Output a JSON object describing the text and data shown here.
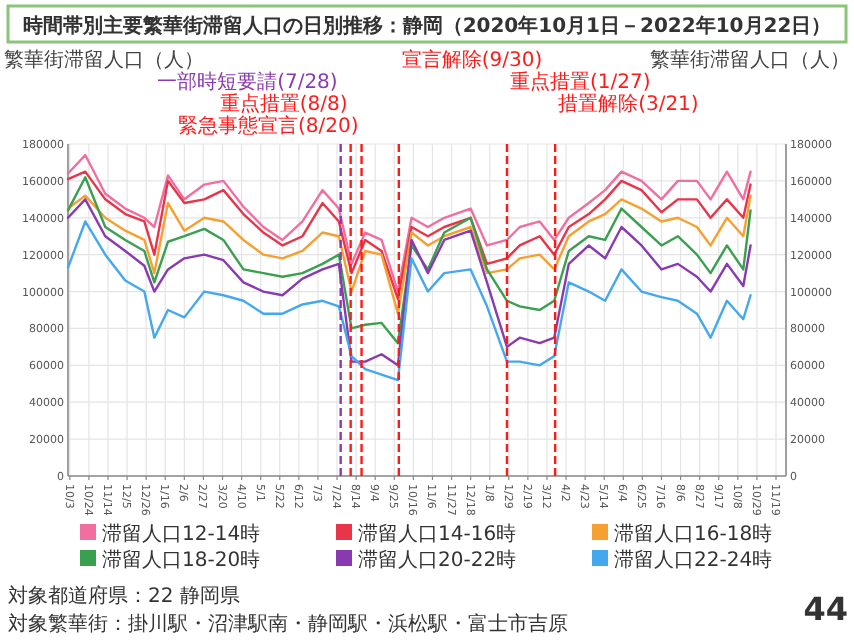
{
  "chart_data": {
    "type": "line",
    "title": "時間帯別主要繁華街滞留人口の日別推移：静岡（2020年10月1日－2022年10月22日）",
    "ylabel": "繁華街滞留人口（人）",
    "y2label": "繁華街滞留人口（人）",
    "x": [
      "2020-10-01",
      "2020-10-20",
      "2020-11-11",
      "2020-12-03",
      "2020-12-24",
      "2021-01-04",
      "2021-01-19",
      "2021-02-06",
      "2021-02-28",
      "2021-03-21",
      "2021-04-12",
      "2021-05-04",
      "2021-05-25",
      "2021-06-16",
      "2021-07-08",
      "2021-07-26",
      "2021-08-09",
      "2021-08-24",
      "2021-09-11",
      "2021-09-29",
      "2021-10-14",
      "2021-11-01",
      "2021-11-19",
      "2021-12-18",
      "2022-01-05",
      "2022-01-27",
      "2022-02-10",
      "2022-03-04",
      "2022-03-20",
      "2022-04-05",
      "2022-04-27",
      "2022-05-15",
      "2022-06-02",
      "2022-06-24",
      "2022-07-16",
      "2022-08-03",
      "2022-08-24",
      "2022-09-08",
      "2022-09-26",
      "2022-10-14",
      "2022-10-22"
    ],
    "series": [
      {
        "name": "滞留人口12-14時",
        "color": "#f06fa0",
        "values": [
          164000,
          174000,
          153000,
          145000,
          140000,
          135000,
          163000,
          150000,
          158000,
          160000,
          146000,
          135000,
          128000,
          138000,
          155000,
          145000,
          115000,
          132000,
          128000,
          100000,
          140000,
          135000,
          140000,
          145000,
          125000,
          128000,
          135000,
          138000,
          128000,
          140000,
          148000,
          155000,
          165000,
          160000,
          150000,
          160000,
          160000,
          150000,
          165000,
          150000,
          165000
        ]
      },
      {
        "name": "滞留人口14-16時",
        "color": "#e8354a",
        "values": [
          161000,
          165000,
          150000,
          142000,
          138000,
          120000,
          160000,
          148000,
          150000,
          155000,
          142000,
          132000,
          125000,
          130000,
          148000,
          138000,
          110000,
          128000,
          122000,
          96000,
          135000,
          130000,
          135000,
          140000,
          115000,
          118000,
          125000,
          130000,
          120000,
          135000,
          142000,
          150000,
          160000,
          155000,
          143000,
          150000,
          150000,
          140000,
          150000,
          140000,
          158000
        ]
      },
      {
        "name": "滞留人口16-18時",
        "color": "#f5a031",
        "values": [
          145000,
          152000,
          140000,
          133000,
          128000,
          110000,
          148000,
          133000,
          140000,
          138000,
          128000,
          120000,
          118000,
          122000,
          132000,
          130000,
          100000,
          122000,
          120000,
          88000,
          132000,
          125000,
          130000,
          135000,
          110000,
          112000,
          118000,
          120000,
          112000,
          130000,
          138000,
          142000,
          150000,
          145000,
          138000,
          140000,
          135000,
          125000,
          140000,
          130000,
          152000
        ]
      },
      {
        "name": "滞留人口18-20時",
        "color": "#3aa050",
        "values": [
          144000,
          162000,
          135000,
          128000,
          122000,
          105000,
          127000,
          130000,
          134000,
          128000,
          112000,
          110000,
          108000,
          110000,
          115000,
          120000,
          80000,
          82000,
          83000,
          72000,
          125000,
          112000,
          132000,
          140000,
          112000,
          95000,
          92000,
          90000,
          95000,
          122000,
          130000,
          128000,
          145000,
          135000,
          125000,
          130000,
          120000,
          110000,
          125000,
          112000,
          144000
        ]
      },
      {
        "name": "滞留人口20-22時",
        "color": "#8a3ab0",
        "values": [
          140000,
          150000,
          130000,
          122000,
          114000,
          100000,
          112000,
          118000,
          120000,
          117000,
          105000,
          100000,
          98000,
          107000,
          112000,
          115000,
          62000,
          62000,
          66000,
          60000,
          128000,
          110000,
          128000,
          133000,
          105000,
          70000,
          75000,
          72000,
          75000,
          115000,
          125000,
          118000,
          135000,
          125000,
          112000,
          115000,
          108000,
          100000,
          115000,
          103000,
          125000
        ]
      },
      {
        "name": "滞留人口22-24時",
        "color": "#45a8ef",
        "values": [
          113000,
          138000,
          120000,
          106000,
          100000,
          75000,
          90000,
          86000,
          100000,
          98000,
          95000,
          88000,
          88000,
          93000,
          95000,
          92000,
          65000,
          58000,
          55000,
          52000,
          118000,
          100000,
          110000,
          112000,
          92000,
          62000,
          62000,
          60000,
          65000,
          105000,
          100000,
          95000,
          112000,
          100000,
          97000,
          95000,
          88000,
          75000,
          95000,
          85000,
          98000
        ]
      }
    ],
    "xlim": [
      "2020-10-01",
      "2022-11-30"
    ],
    "xticks": [
      {
        "value": "2020-10-03",
        "label": "10/3"
      },
      {
        "value": "2020-10-24",
        "label": "10/24"
      },
      {
        "value": "2020-11-14",
        "label": "11/14"
      },
      {
        "value": "2020-12-05",
        "label": "12/5"
      },
      {
        "value": "2020-12-26",
        "label": "12/26"
      },
      {
        "value": "2021-01-16",
        "label": "1/16"
      },
      {
        "value": "2021-02-06",
        "label": "2/6"
      },
      {
        "value": "2021-02-27",
        "label": "2/27"
      },
      {
        "value": "2021-03-20",
        "label": "3/20"
      },
      {
        "value": "2021-04-10",
        "label": "4/10"
      },
      {
        "value": "2021-05-01",
        "label": "5/1"
      },
      {
        "value": "2021-05-22",
        "label": "5/22"
      },
      {
        "value": "2021-06-12",
        "label": "6/12"
      },
      {
        "value": "2021-07-03",
        "label": "7/3"
      },
      {
        "value": "2021-07-24",
        "label": "7/24"
      },
      {
        "value": "2021-08-14",
        "label": "8/14"
      },
      {
        "value": "2021-09-04",
        "label": "9/4"
      },
      {
        "value": "2021-09-25",
        "label": "9/25"
      },
      {
        "value": "2021-10-16",
        "label": "10/16"
      },
      {
        "value": "2021-11-06",
        "label": "11/6"
      },
      {
        "value": "2021-11-27",
        "label": "11/27"
      },
      {
        "value": "2021-12-18",
        "label": "12/18"
      },
      {
        "value": "2022-01-08",
        "label": "1/8"
      },
      {
        "value": "2022-01-29",
        "label": "1/29"
      },
      {
        "value": "2022-02-19",
        "label": "2/19"
      },
      {
        "value": "2022-03-12",
        "label": "3/12"
      },
      {
        "value": "2022-04-02",
        "label": "4/2"
      },
      {
        "value": "2022-04-23",
        "label": "4/23"
      },
      {
        "value": "2022-05-14",
        "label": "5/14"
      },
      {
        "value": "2022-06-04",
        "label": "6/4"
      },
      {
        "value": "2022-06-25",
        "label": "6/25"
      },
      {
        "value": "2022-07-16",
        "label": "7/16"
      },
      {
        "value": "2022-08-06",
        "label": "8/6"
      },
      {
        "value": "2022-08-27",
        "label": "8/27"
      },
      {
        "value": "2022-09-17",
        "label": "9/17"
      },
      {
        "value": "2022-10-08",
        "label": "10/8"
      },
      {
        "value": "2022-10-29",
        "label": "10/29"
      },
      {
        "value": "2022-11-19",
        "label": "11/19"
      }
    ],
    "ylim": [
      0,
      180000
    ],
    "yticks": [
      0,
      20000,
      40000,
      60000,
      80000,
      100000,
      120000,
      140000,
      160000,
      180000
    ],
    "y2lim": [
      0,
      180000
    ],
    "y2ticks": [
      0,
      20000,
      40000,
      60000,
      80000,
      100000,
      120000,
      140000,
      160000,
      180000
    ],
    "grid": true,
    "legend": "bottom",
    "line_style": "solid",
    "ref_lines": [
      {
        "axis": "x",
        "value": "2021-07-28",
        "label": "一部時短要請(7/28)",
        "color": "#8a3ab0",
        "line_style": "dashed"
      },
      {
        "axis": "x",
        "value": "2021-08-08",
        "label": "重点措置(8/8)",
        "color": "#ff1a1a",
        "line_style": "dashed"
      },
      {
        "axis": "x",
        "value": "2021-08-20",
        "label": "緊急事態宣言(8/20)",
        "color": "#ff1a1a",
        "line_style": "dashed"
      },
      {
        "axis": "x",
        "value": "2021-09-30",
        "label": "宣言解除(9/30)",
        "color": "#ff1a1a",
        "line_style": "dashed"
      },
      {
        "axis": "x",
        "value": "2022-01-27",
        "label": "重点措置(1/27)",
        "color": "#ff1a1a",
        "line_style": "dashed"
      },
      {
        "axis": "x",
        "value": "2022-03-21",
        "label": "措置解除(3/21)",
        "color": "#ff1a1a",
        "line_style": "dashed"
      }
    ],
    "annotations": [
      "対象都道府県：22 静岡県",
      "対象繁華街：掛川駅・沼津駅南・静岡駅・浜松駅・富士市吉原",
      "44"
    ]
  }
}
